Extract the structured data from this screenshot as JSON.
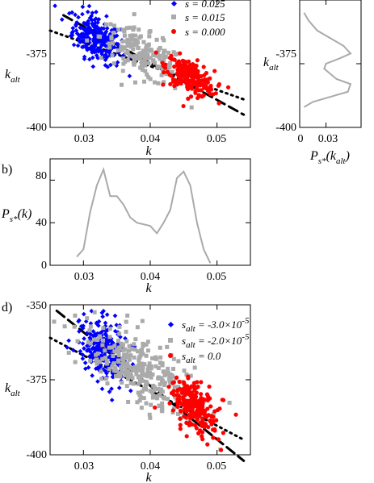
{
  "chart_data": [
    {
      "panel": "a",
      "type": "scatter",
      "xlabel": "k",
      "ylabel": "k_alt",
      "xlim": [
        0.025,
        0.055
      ],
      "ylim": [
        -400,
        -350
      ],
      "xticks": [
        "0.03",
        "0.04",
        "0.05"
      ],
      "yticks": [
        "-400",
        "-375"
      ],
      "legend": "top-right",
      "series": [
        {
          "name": "s = 0.025",
          "color": "#0000ff",
          "marker": "diamond",
          "center": [
            0.032,
            -365
          ],
          "spread": [
            0.0018,
            4.5
          ],
          "count": 260
        },
        {
          "name": "s = 0.015",
          "color": "#aaaaaa",
          "marker": "square",
          "center": [
            0.039,
            -372
          ],
          "spread": [
            0.0032,
            4.5
          ],
          "count": 180
        },
        {
          "name": "s = 0.000",
          "color": "#ff0000",
          "marker": "circle",
          "center": [
            0.046,
            -380
          ],
          "spread": [
            0.0018,
            3.2
          ],
          "count": 220
        }
      ],
      "lines": [
        {
          "style": "dashed",
          "x": [
            0.027,
            0.054
          ],
          "y": [
            -356,
            -395
          ]
        },
        {
          "style": "dotted",
          "x": [
            0.025,
            0.054
          ],
          "y": [
            -362,
            -389
          ]
        }
      ]
    },
    {
      "panel": "a-side",
      "type": "line",
      "xlabel": "P_s*(k_alt)",
      "ylabel": "k_alt",
      "xlim": [
        0,
        0.07
      ],
      "ylim": [
        -400,
        -350
      ],
      "xticks": [
        "0",
        "0.03"
      ],
      "yticks": [
        "-400",
        "-375"
      ],
      "series": [
        {
          "color": "#aaaaaa",
          "x": [
            0.005,
            0.01,
            0.02,
            0.035,
            0.05,
            0.058,
            0.045,
            0.03,
            0.028,
            0.035,
            0.042,
            0.058,
            0.055,
            0.035,
            0.015,
            0.005
          ],
          "y": [
            -355,
            -358,
            -362,
            -365,
            -368,
            -371,
            -373,
            -375,
            -377,
            -379,
            -381,
            -383,
            -386,
            -388,
            -390,
            -392
          ]
        }
      ]
    },
    {
      "panel": "b",
      "type": "line",
      "xlabel": "k",
      "ylabel": "P_s*(k)",
      "xlim": [
        0.025,
        0.055
      ],
      "ylim": [
        0,
        100
      ],
      "xticks": [
        "0.03",
        "0.04",
        "0.05"
      ],
      "yticks": [
        "0",
        "40",
        "80"
      ],
      "series": [
        {
          "color": "#aaaaaa",
          "x": [
            0.029,
            0.03,
            0.031,
            0.032,
            0.033,
            0.034,
            0.035,
            0.036,
            0.037,
            0.038,
            0.04,
            0.041,
            0.042,
            0.043,
            0.044,
            0.045,
            0.046,
            0.047,
            0.048,
            0.049
          ],
          "y": [
            8,
            15,
            50,
            75,
            90,
            65,
            65,
            57,
            45,
            40,
            37,
            30,
            40,
            52,
            82,
            88,
            75,
            40,
            15,
            2
          ]
        }
      ]
    },
    {
      "panel": "d",
      "type": "scatter",
      "xlabel": "k",
      "ylabel": "k_alt",
      "xlim": [
        0.025,
        0.055
      ],
      "ylim": [
        -400,
        -350
      ],
      "xticks": [
        "0.03",
        "0.04",
        "0.05"
      ],
      "yticks": [
        "-400",
        "-375",
        "-350"
      ],
      "legend": "top-right",
      "series": [
        {
          "name": "s_alt = -3.0×10^-5",
          "color": "#0000ff",
          "marker": "diamond",
          "center": [
            0.033,
            -365
          ],
          "spread": [
            0.0018,
            5.5
          ],
          "count": 260
        },
        {
          "name": "s_alt = -2.0×10^-5",
          "color": "#aaaaaa",
          "marker": "square",
          "center": [
            0.039,
            -373
          ],
          "spread": [
            0.0045,
            6.0
          ],
          "count": 300
        },
        {
          "name": "s_alt = 0.0",
          "color": "#ff0000",
          "marker": "circle",
          "center": [
            0.0465,
            -384
          ],
          "spread": [
            0.0018,
            4.0
          ],
          "count": 220
        }
      ],
      "lines": [
        {
          "style": "dashed",
          "x": [
            0.026,
            0.054
          ],
          "y": [
            -352,
            -402
          ]
        },
        {
          "style": "dotted",
          "x": [
            0.025,
            0.054
          ],
          "y": [
            -361,
            -395
          ]
        }
      ]
    }
  ],
  "labels": {
    "panel_b": "b)",
    "panel_d": "d)",
    "k": "k",
    "kalt_main": "k",
    "kalt_sub": "alt",
    "ps_main": "P",
    "ps_sub": "s*",
    "ps_arg_k": "(k)",
    "side_xlabel_a": "(k",
    "side_xlabel_b": ")",
    "legend_a": [
      "s = 0.025",
      "s = 0.015",
      "s = 0.000"
    ],
    "legend_d": {
      "blue_prefix": "s",
      "blue_sub": "alt",
      "blue_val": " = -3.0×10",
      "blue_exp": "-5",
      "grey_prefix": "s",
      "grey_sub": "alt",
      "grey_val": " = -2.0×10",
      "grey_exp": "-5",
      "red_prefix": "s",
      "red_sub": "alt",
      "red_val": " = 0.0"
    }
  }
}
